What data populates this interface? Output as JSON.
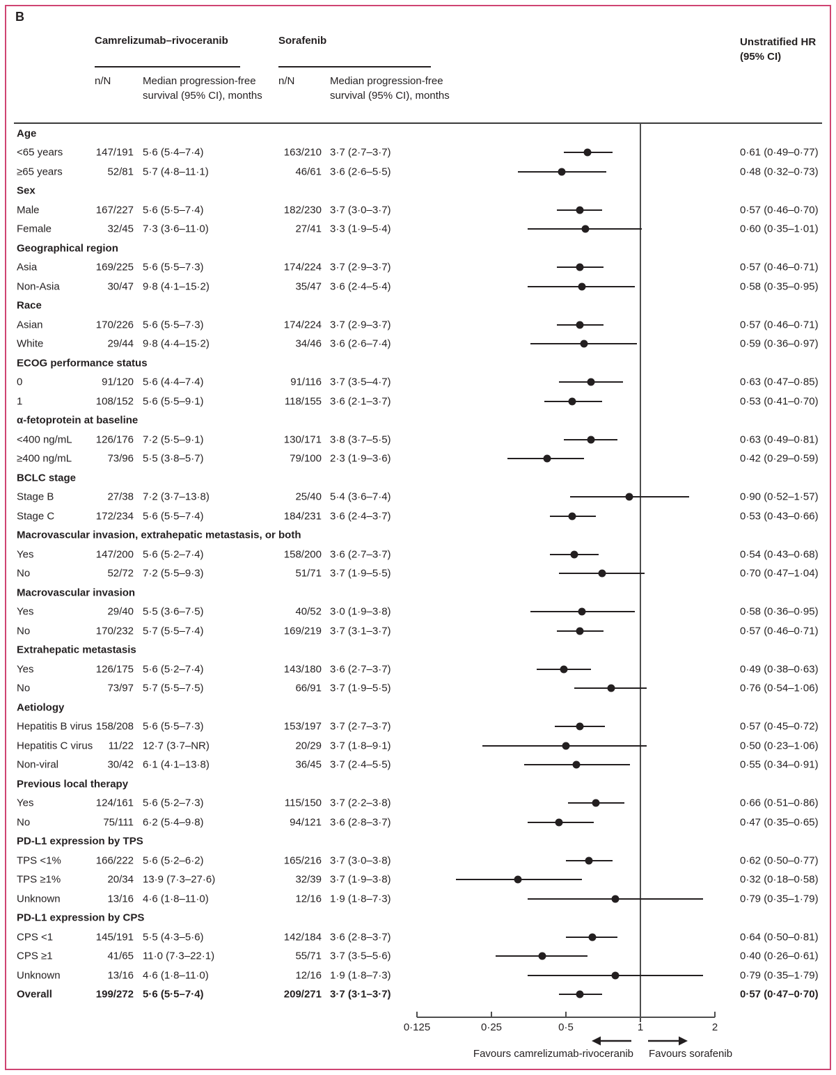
{
  "figure": {
    "panel_label": "B",
    "border_color": "#cf4472",
    "text_color": "#231f20"
  },
  "header": {
    "group1": "Camrelizumab–rivoceranib",
    "group2": "Sorafenib",
    "hr_line1": "Unstratified HR",
    "hr_line2": "(95% CI)",
    "n_over_N": "n/N",
    "median_header": "Median progression-free survival (95% CI), months"
  },
  "chart_data": {
    "type": "scatter",
    "variant": "forest-plot",
    "x_scale": "log2",
    "x_axis": {
      "ticks": [
        {
          "label": "0·125",
          "value": 0.125
        },
        {
          "label": "0·25",
          "value": 0.25
        },
        {
          "label": "0·5",
          "value": 0.5
        },
        {
          "label": "1",
          "value": 1
        },
        {
          "label": "2",
          "value": 2
        }
      ],
      "reference_line": 1
    },
    "footer": {
      "favours_left": "Favours camrelizumab-rivoceranib",
      "favours_right": "Favours sorafenib"
    },
    "rows": [
      {
        "type": "section",
        "label": "Age"
      },
      {
        "type": "item",
        "label": "<65 years",
        "nN1": "147/191",
        "med1": "5·6 (5·4–7·4)",
        "nN2": "163/210",
        "med2": "3·7 (2·7–3·7)",
        "hr_text": "0·61 (0·49–0·77)",
        "hr": 0.61,
        "lo": 0.49,
        "hi": 0.77
      },
      {
        "type": "item",
        "label": "≥65 years",
        "nN1": "52/81",
        "med1": "5·7 (4·8–11·1)",
        "nN2": "46/61",
        "med2": "3·6 (2·6–5·5)",
        "hr_text": "0·48 (0·32–0·73)",
        "hr": 0.48,
        "lo": 0.32,
        "hi": 0.73
      },
      {
        "type": "section",
        "label": "Sex"
      },
      {
        "type": "item",
        "label": "Male",
        "nN1": "167/227",
        "med1": "5·6 (5·5–7·4)",
        "nN2": "182/230",
        "med2": "3·7 (3·0–3·7)",
        "hr_text": "0·57 (0·46–0·70)",
        "hr": 0.57,
        "lo": 0.46,
        "hi": 0.7
      },
      {
        "type": "item",
        "label": "Female",
        "nN1": "32/45",
        "med1": "7·3 (3·6–11·0)",
        "nN2": "27/41",
        "med2": "3·3 (1·9–5·4)",
        "hr_text": "0·60 (0·35–1·01)",
        "hr": 0.6,
        "lo": 0.35,
        "hi": 1.01
      },
      {
        "type": "section",
        "label": "Geographical region"
      },
      {
        "type": "item",
        "label": "Asia",
        "nN1": "169/225",
        "med1": "5·6 (5·5–7·3)",
        "nN2": "174/224",
        "med2": "3·7 (2·9–3·7)",
        "hr_text": "0·57 (0·46–0·71)",
        "hr": 0.57,
        "lo": 0.46,
        "hi": 0.71
      },
      {
        "type": "item",
        "label": "Non-Asia",
        "nN1": "30/47",
        "med1": "9·8 (4·1–15·2)",
        "nN2": "35/47",
        "med2": "3·6 (2·4–5·4)",
        "hr_text": "0·58 (0·35–0·95)",
        "hr": 0.58,
        "lo": 0.35,
        "hi": 0.95
      },
      {
        "type": "section",
        "label": "Race"
      },
      {
        "type": "item",
        "label": "Asian",
        "nN1": "170/226",
        "med1": "5·6 (5·5–7·3)",
        "nN2": "174/224",
        "med2": "3·7 (2·9–3·7)",
        "hr_text": "0·57 (0·46–0·71)",
        "hr": 0.57,
        "lo": 0.46,
        "hi": 0.71
      },
      {
        "type": "item",
        "label": "White",
        "nN1": "29/44",
        "med1": "9·8 (4·4–15·2)",
        "nN2": "34/46",
        "med2": "3·6 (2·6–7·4)",
        "hr_text": "0·59 (0·36–0·97)",
        "hr": 0.59,
        "lo": 0.36,
        "hi": 0.97
      },
      {
        "type": "section",
        "label": "ECOG performance status"
      },
      {
        "type": "item",
        "label": "0",
        "nN1": "91/120",
        "med1": "5·6 (4·4–7·4)",
        "nN2": "91/116",
        "med2": "3·7 (3·5–4·7)",
        "hr_text": "0·63 (0·47–0·85)",
        "hr": 0.63,
        "lo": 0.47,
        "hi": 0.85
      },
      {
        "type": "item",
        "label": "1",
        "nN1": "108/152",
        "med1": "5·6 (5·5–9·1)",
        "nN2": "118/155",
        "med2": "3·6 (2·1–3·7)",
        "hr_text": "0·53 (0·41–0·70)",
        "hr": 0.53,
        "lo": 0.41,
        "hi": 0.7
      },
      {
        "type": "section",
        "label": "α-fetoprotein at baseline"
      },
      {
        "type": "item",
        "label": "<400 ng/mL",
        "nN1": "126/176",
        "med1": "7·2 (5·5–9·1)",
        "nN2": "130/171",
        "med2": "3·8 (3·7–5·5)",
        "hr_text": "0·63 (0·49–0·81)",
        "hr": 0.63,
        "lo": 0.49,
        "hi": 0.81
      },
      {
        "type": "item",
        "label": "≥400 ng/mL",
        "nN1": "73/96",
        "med1": "5·5 (3·8–5·7)",
        "nN2": "79/100",
        "med2": "2·3 (1·9–3·6)",
        "hr_text": "0·42 (0·29–0·59)",
        "hr": 0.42,
        "lo": 0.29,
        "hi": 0.59
      },
      {
        "type": "section",
        "label": "BCLC stage"
      },
      {
        "type": "item",
        "label": "Stage B",
        "nN1": "27/38",
        "med1": "7·2 (3·7–13·8)",
        "nN2": "25/40",
        "med2": "5·4 (3·6–7·4)",
        "hr_text": "0·90 (0·52–1·57)",
        "hr": 0.9,
        "lo": 0.52,
        "hi": 1.57
      },
      {
        "type": "item",
        "label": "Stage C",
        "nN1": "172/234",
        "med1": "5·6 (5·5–7·4)",
        "nN2": "184/231",
        "med2": "3·6 (2·4–3·7)",
        "hr_text": "0·53 (0·43–0·66)",
        "hr": 0.53,
        "lo": 0.43,
        "hi": 0.66
      },
      {
        "type": "section",
        "label": "Macrovascular invasion, extrahepatic metastasis, or both"
      },
      {
        "type": "item",
        "label": "Yes",
        "nN1": "147/200",
        "med1": "5·6 (5·2–7·4)",
        "nN2": "158/200",
        "med2": "3·6 (2·7–3·7)",
        "hr_text": "0·54 (0·43–0·68)",
        "hr": 0.54,
        "lo": 0.43,
        "hi": 0.68
      },
      {
        "type": "item",
        "label": "No",
        "nN1": "52/72",
        "med1": "7·2 (5·5–9·3)",
        "nN2": "51/71",
        "med2": "3·7 (1·9–5·5)",
        "hr_text": "0·70 (0·47–1·04)",
        "hr": 0.7,
        "lo": 0.47,
        "hi": 1.04
      },
      {
        "type": "section",
        "label": "Macrovascular invasion"
      },
      {
        "type": "item",
        "label": "Yes",
        "nN1": "29/40",
        "med1": "5·5 (3·6–7·5)",
        "nN2": "40/52",
        "med2": "3·0 (1·9–3·8)",
        "hr_text": "0·58 (0·36–0·95)",
        "hr": 0.58,
        "lo": 0.36,
        "hi": 0.95
      },
      {
        "type": "item",
        "label": "No",
        "nN1": "170/232",
        "med1": "5·7 (5·5–7·4)",
        "nN2": "169/219",
        "med2": "3·7 (3·1–3·7)",
        "hr_text": "0·57 (0·46–0·71)",
        "hr": 0.57,
        "lo": 0.46,
        "hi": 0.71
      },
      {
        "type": "section",
        "label": "Extrahepatic metastasis"
      },
      {
        "type": "item",
        "label": "Yes",
        "nN1": "126/175",
        "med1": "5·6 (5·2–7·4)",
        "nN2": "143/180",
        "med2": "3·6 (2·7–3·7)",
        "hr_text": "0·49 (0·38–0·63)",
        "hr": 0.49,
        "lo": 0.38,
        "hi": 0.63
      },
      {
        "type": "item",
        "label": "No",
        "nN1": "73/97",
        "med1": "5·7 (5·5–7·5)",
        "nN2": "66/91",
        "med2": "3·7 (1·9–5·5)",
        "hr_text": "0·76 (0·54–1·06)",
        "hr": 0.76,
        "lo": 0.54,
        "hi": 1.06
      },
      {
        "type": "section",
        "label": "Aetiology"
      },
      {
        "type": "item",
        "label": "Hepatitis B virus",
        "nN1": "158/208",
        "med1": "5·6 (5·5–7·3)",
        "nN2": "153/197",
        "med2": "3·7 (2·7–3·7)",
        "hr_text": "0·57 (0·45–0·72)",
        "hr": 0.57,
        "lo": 0.45,
        "hi": 0.72
      },
      {
        "type": "item",
        "label": "Hepatitis C virus",
        "nN1": "11/22",
        "med1": "12·7 (3·7–NR)",
        "nN2": "20/29",
        "med2": "3·7 (1·8–9·1)",
        "hr_text": "0·50 (0·23–1·06)",
        "hr": 0.5,
        "lo": 0.23,
        "hi": 1.06
      },
      {
        "type": "item",
        "label": "Non-viral",
        "nN1": "30/42",
        "med1": "6·1 (4·1–13·8)",
        "nN2": "36/45",
        "med2": "3·7 (2·4–5·5)",
        "hr_text": "0·55 (0·34–0·91)",
        "hr": 0.55,
        "lo": 0.34,
        "hi": 0.91
      },
      {
        "type": "section",
        "label": "Previous local therapy"
      },
      {
        "type": "item",
        "label": "Yes",
        "nN1": "124/161",
        "med1": "5·6 (5·2–7·3)",
        "nN2": "115/150",
        "med2": "3·7 (2·2–3·8)",
        "hr_text": "0·66 (0·51–0·86)",
        "hr": 0.66,
        "lo": 0.51,
        "hi": 0.86
      },
      {
        "type": "item",
        "label": "No",
        "nN1": "75/111",
        "med1": "6·2 (5·4–9·8)",
        "nN2": "94/121",
        "med2": "3·6 (2·8–3·7)",
        "hr_text": "0·47 (0·35–0·65)",
        "hr": 0.47,
        "lo": 0.35,
        "hi": 0.65
      },
      {
        "type": "section",
        "label": "PD-L1 expression by TPS"
      },
      {
        "type": "item",
        "label": "TPS <1%",
        "nN1": "166/222",
        "med1": "5·6 (5·2–6·2)",
        "nN2": "165/216",
        "med2": "3·7 (3·0–3·8)",
        "hr_text": "0·62 (0·50–0·77)",
        "hr": 0.62,
        "lo": 0.5,
        "hi": 0.77
      },
      {
        "type": "item",
        "label": "TPS ≥1%",
        "nN1": "20/34",
        "med1": "13·9 (7·3–27·6)",
        "nN2": "32/39",
        "med2": "3·7 (1·9–3·8)",
        "hr_text": "0·32 (0·18–0·58)",
        "hr": 0.32,
        "lo": 0.18,
        "hi": 0.58
      },
      {
        "type": "item",
        "label": "Unknown",
        "nN1": "13/16",
        "med1": "4·6 (1·8–11·0)",
        "nN2": "12/16",
        "med2": "1·9 (1·8–7·3)",
        "hr_text": "0·79 (0·35–1·79)",
        "hr": 0.79,
        "lo": 0.35,
        "hi": 1.79
      },
      {
        "type": "section",
        "label": "PD-L1 expression by CPS"
      },
      {
        "type": "item",
        "label": "CPS <1",
        "nN1": "145/191",
        "med1": "5·5 (4·3–5·6)",
        "nN2": "142/184",
        "med2": "3·6 (2·8–3·7)",
        "hr_text": "0·64 (0·50–0·81)",
        "hr": 0.64,
        "lo": 0.5,
        "hi": 0.81
      },
      {
        "type": "item",
        "label": "CPS ≥1",
        "nN1": "41/65",
        "med1": "11·0 (7·3–22·1)",
        "nN2": "55/71",
        "med2": "3·7 (3·5–5·6)",
        "hr_text": "0·40 (0·26–0·61)",
        "hr": 0.4,
        "lo": 0.26,
        "hi": 0.61
      },
      {
        "type": "item",
        "label": "Unknown",
        "nN1": "13/16",
        "med1": "4·6 (1·8–11·0)",
        "nN2": "12/16",
        "med2": "1·9 (1·8–7·3)",
        "hr_text": "0·79 (0·35–1·79)",
        "hr": 0.79,
        "lo": 0.35,
        "hi": 1.79
      },
      {
        "type": "overall",
        "label": "Overall",
        "nN1": "199/272",
        "med1": "5·6 (5·5–7·4)",
        "nN2": "209/271",
        "med2": "3·7 (3·1–3·7)",
        "hr_text": "0·57 (0·47–0·70)",
        "hr": 0.57,
        "lo": 0.47,
        "hi": 0.7
      }
    ]
  }
}
